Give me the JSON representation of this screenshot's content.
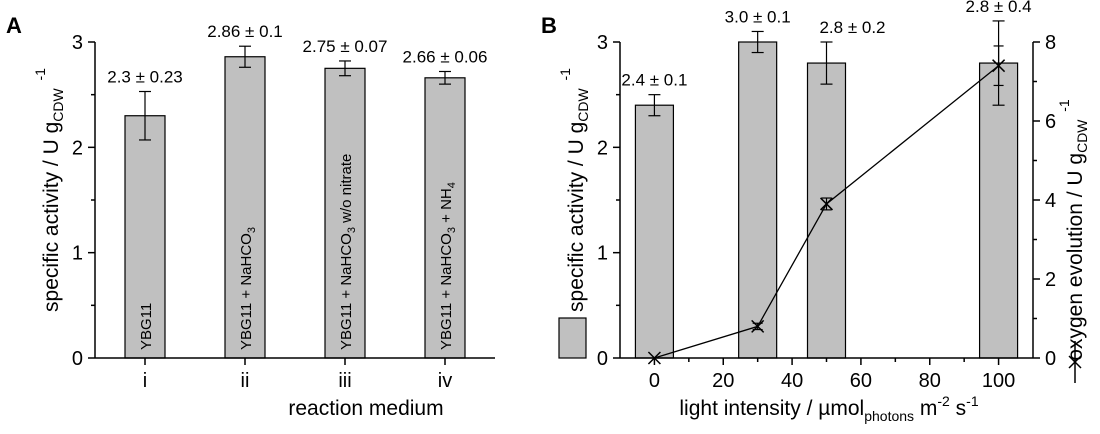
{
  "chart_data": [
    {
      "panel": "A",
      "type": "bar",
      "xlabel": "reaction medium",
      "ylabel": "specific activity / U g",
      "ylabel_sub": "CDW",
      "ylabel_sup": "-1",
      "ylim": [
        0,
        3
      ],
      "yticks": [
        "0",
        "1",
        "2",
        "3"
      ],
      "categories": [
        "i",
        "ii",
        "iii",
        "iv"
      ],
      "values": [
        2.3,
        2.86,
        2.75,
        2.66
      ],
      "errors": [
        0.23,
        0.1,
        0.07,
        0.06
      ],
      "value_labels": [
        "2.3 ± 0.23",
        "2.86 ± 0.1",
        "2.75 ± 0.07",
        "2.66 ± 0.06"
      ],
      "bar_labels": [
        {
          "main": "YBG11",
          "sub": "",
          "tail": ""
        },
        {
          "main": "YBG11 + NaHCO",
          "sub": "3",
          "tail": ""
        },
        {
          "main": "YBG11 + NaHCO",
          "sub": "3",
          "tail": " w/o nitrate"
        },
        {
          "main": "YBG11 + NaHCO",
          "sub": "3",
          "tail": " + NH",
          "sub2": "4"
        }
      ]
    },
    {
      "panel": "B",
      "type": "bar+line",
      "xlabel": "light intensity / µmol",
      "xlabel_sub": "photons",
      "xlabel_tail": " m",
      "xlabel_sup1": "-2",
      "xlabel_tail2": " s",
      "xlabel_sup2": "-1",
      "xlim": [
        -10,
        110
      ],
      "xticks": [
        0,
        20,
        40,
        60,
        80,
        100
      ],
      "ylabel_left": "specific activity / U g",
      "ylabel_left_sub": "CDW",
      "ylabel_left_sup": "-1",
      "ylim_left": [
        0,
        3
      ],
      "yticks_left": [
        "0",
        "1",
        "2",
        "3"
      ],
      "ylabel_right": "oxygen evolution / U g",
      "ylabel_right_sub": "CDW",
      "ylabel_right_sup": "-1",
      "ylim_right": [
        0,
        8
      ],
      "yticks_right": [
        "0",
        "2",
        "4",
        "6",
        "8"
      ],
      "bars": {
        "x": [
          0,
          30,
          50,
          100
        ],
        "values": [
          2.4,
          3.0,
          2.8,
          2.8
        ],
        "errors": [
          0.1,
          0.1,
          0.2,
          0.4
        ],
        "value_labels": [
          "2.4 ± 0.1",
          "3.0 ± 0.1",
          "2.8 ± 0.2",
          "2.8 ± 0.4"
        ]
      },
      "line": {
        "x": [
          0,
          30,
          50,
          100
        ],
        "y": [
          0,
          0.8,
          3.9,
          7.4
        ],
        "errors": [
          0,
          0.08,
          0.15,
          0.5
        ]
      },
      "legend_placement": "left"
    }
  ]
}
